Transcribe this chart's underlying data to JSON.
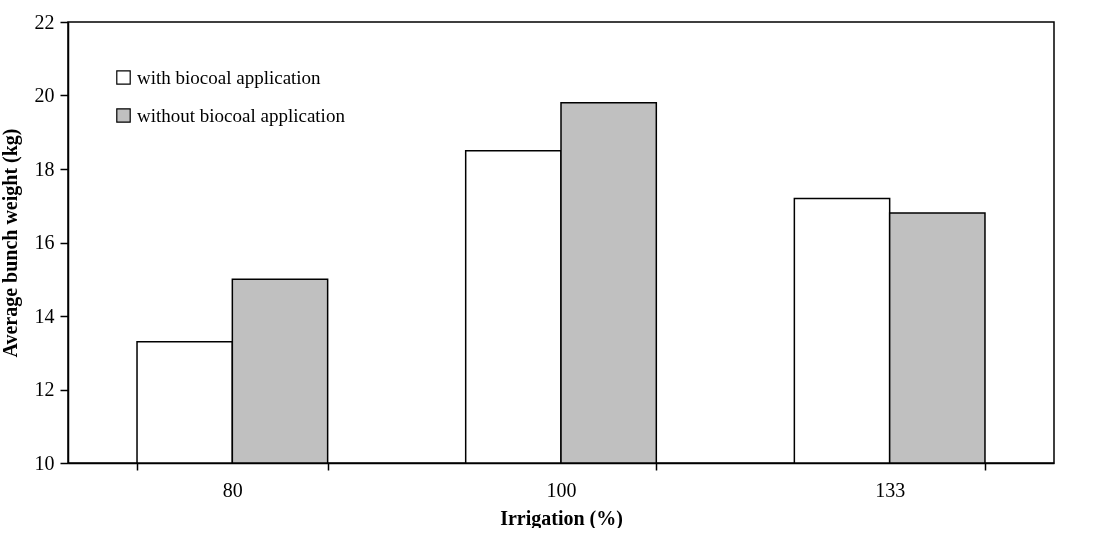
{
  "chart_data": {
    "type": "bar",
    "xlabel": "Irrigation (%)",
    "ylabel": "Average bunch weight (kg)",
    "categories": [
      "80",
      "100",
      "133"
    ],
    "series": [
      {
        "name": "with biocoal application",
        "color": "#ffffff",
        "values": [
          13.3,
          18.5,
          17.2
        ]
      },
      {
        "name": "without biocoal application",
        "color": "#c0c0c0",
        "values": [
          15.0,
          19.8,
          16.8
        ]
      }
    ],
    "ylim": [
      10,
      22
    ],
    "yticks": [
      10,
      12,
      14,
      16,
      18,
      20,
      22
    ],
    "grid": false,
    "legend": "top left"
  }
}
